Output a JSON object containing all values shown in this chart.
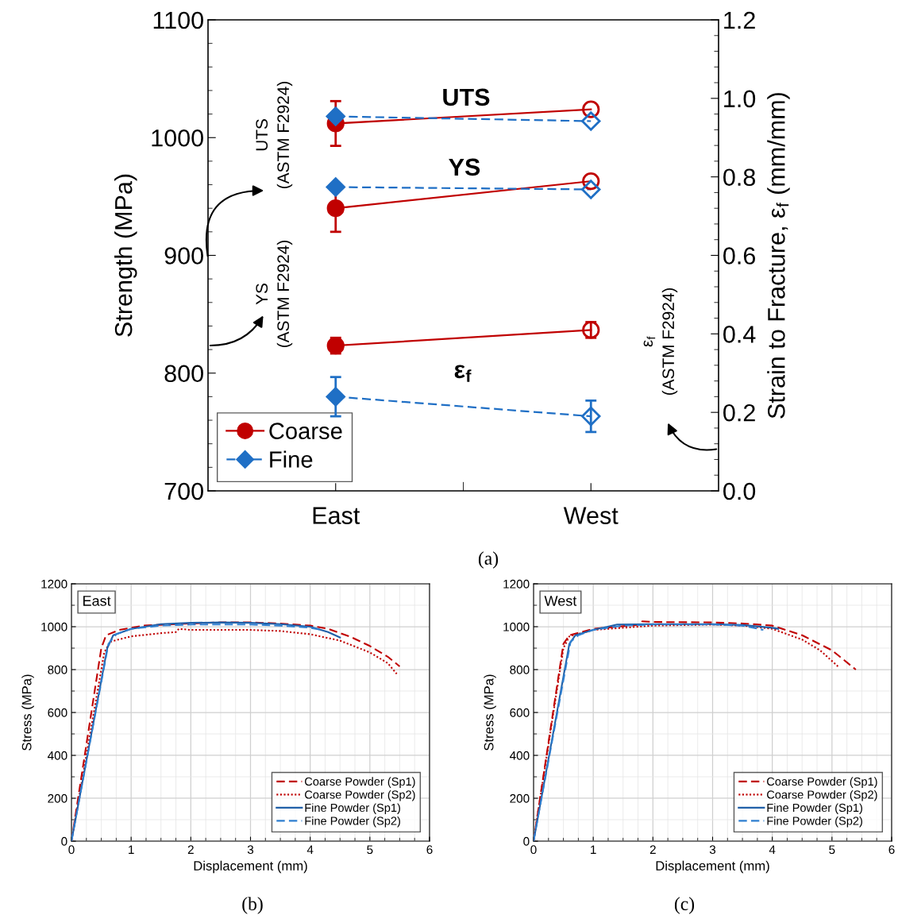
{
  "chart_data": [
    {
      "type": "line",
      "categories": [
        "East",
        "West"
      ],
      "ylabel": "Strength (MPa)",
      "y2label": "Strain to Fracture, ε$_{f}$ (mm/mm)",
      "ylim": [
        700,
        1100
      ],
      "yticks": [
        700,
        800,
        900,
        1000,
        1100
      ],
      "y2lim": [
        0,
        1.2
      ],
      "y2ticks": [
        {
          "value": 0,
          "label": "0.0"
        },
        0.2,
        0.4,
        0.6,
        0.8,
        {
          "value": 1,
          "label": "1.0"
        },
        1.2
      ],
      "legend": "bottom left",
      "grid": false,
      "series": [
        {
          "name": "Coarse",
          "color": "#c00000",
          "marker": "circle",
          "line_style": "solid",
          "values": [
            1012,
            1024
          ],
          "errors": [
            19,
            null
          ]
        },
        {
          "name": "Fine",
          "color": "#1f6fc5",
          "marker": "diamond",
          "line_style": "dashed",
          "values": [
            1018,
            1014
          ],
          "errors": [
            null,
            null
          ]
        },
        {
          "color": "#c00000",
          "marker": "circle",
          "line_style": "solid",
          "values": [
            940,
            963
          ],
          "errors": [
            20,
            null
          ]
        },
        {
          "color": "#1f6fc5",
          "marker": "diamond",
          "line_style": "dashed",
          "values": [
            958,
            956
          ],
          "errors": [
            null,
            null
          ]
        },
        {
          "color": "#c00000",
          "marker": "circle",
          "line_style": "solid",
          "axis": "y2",
          "values": [
            0.37,
            0.41
          ],
          "errors": [
            0.02,
            0.02
          ]
        },
        {
          "color": "#1f6fc5",
          "marker": "diamond",
          "line_style": "dashed",
          "axis": "y2",
          "values": [
            0.24,
            0.19
          ],
          "errors": [
            0.05,
            0.04
          ]
        }
      ],
      "annotations": [
        "UTS",
        "YS",
        "ε$_{f}$",
        "UTS\n(ASTM F2924)",
        "YS\n(ASTM F2924)",
        "ε$_{f}$\n(ASTM F2924)",
        "(a)"
      ]
    },
    {
      "type": "line",
      "title": "East",
      "xlabel": "Displacement (mm)",
      "ylabel": "Stress (MPa)",
      "xlim": [
        0,
        6
      ],
      "xticks": [
        0,
        1,
        2,
        3,
        4,
        5,
        6
      ],
      "ylim": [
        0,
        1200
      ],
      "yticks": [
        0,
        200,
        400,
        600,
        800,
        1000,
        1200
      ],
      "grid": true,
      "legend": "bottom right",
      "series": [
        {
          "name": "Coarse Powder (Sp1)",
          "color": "#c00000",
          "line_style": "dashed",
          "x": [
            0,
            0.5,
            0.58,
            0.8,
            1.2,
            2,
            2.5,
            3,
            3.5,
            4,
            4.3,
            4.7,
            5,
            5.3,
            5.5
          ],
          "values": [
            0,
            900,
            960,
            985,
            1005,
            1015,
            1020,
            1020,
            1015,
            1005,
            990,
            950,
            910,
            860,
            815
          ]
        },
        {
          "name": "Coarse Powder (Sp2)",
          "color": "#c00000",
          "line_style": "dotted",
          "x": [
            0,
            0.55,
            0.65,
            1,
            1.5,
            1.75,
            1.8,
            2,
            3,
            3.5,
            4,
            4.5,
            5,
            5.3,
            5.45
          ],
          "values": [
            0,
            880,
            930,
            955,
            970,
            975,
            990,
            985,
            985,
            980,
            965,
            935,
            880,
            830,
            780
          ]
        },
        {
          "name": "Fine Powder (Sp1)",
          "color": "#2060a8",
          "line_style": "solid",
          "x": [
            0,
            0.6,
            0.7,
            1,
            1.5,
            2,
            2.5,
            3,
            3.5,
            4,
            4.3,
            4.5
          ],
          "values": [
            0,
            900,
            960,
            990,
            1012,
            1018,
            1020,
            1018,
            1012,
            1000,
            975,
            950
          ]
        },
        {
          "name": "Fine Powder (Sp2)",
          "color": "#2f7fd0",
          "line_style": "dashed",
          "x": [
            0,
            0.62,
            0.75,
            1,
            1.5,
            2,
            3,
            3.5,
            4,
            4.2
          ],
          "values": [
            0,
            920,
            965,
            990,
            1005,
            1010,
            1010,
            1005,
            995,
            985
          ]
        }
      ],
      "annotations": [
        "(b)"
      ]
    },
    {
      "type": "line",
      "title": "West",
      "xlabel": "Displacement (mm)",
      "ylabel": "Stress (MPa)",
      "xlim": [
        0,
        6
      ],
      "xticks": [
        0,
        1,
        2,
        3,
        4,
        5,
        6
      ],
      "ylim": [
        0,
        1200
      ],
      "yticks": [
        0,
        200,
        400,
        600,
        800,
        1000,
        1200
      ],
      "grid": true,
      "legend": "bottom right",
      "series": [
        {
          "name": "Coarse Powder (Sp1)",
          "color": "#c00000",
          "line_style": "dashed",
          "x": [
            0,
            0.5,
            0.6,
            1,
            1.8,
            1.82,
            2,
            3,
            3.5,
            4,
            4.5,
            5,
            5.4
          ],
          "values": [
            0,
            920,
            960,
            990,
            1010,
            1025,
            1022,
            1020,
            1015,
            1005,
            960,
            890,
            800
          ]
        },
        {
          "name": "Coarse Powder (Sp2)",
          "color": "#c00000",
          "line_style": "dotted",
          "x": [
            0,
            0.5,
            0.6,
            1,
            2,
            3,
            3.5,
            4,
            4.5,
            4.8,
            5.1
          ],
          "values": [
            0,
            900,
            955,
            985,
            1005,
            1010,
            1005,
            990,
            940,
            890,
            815
          ]
        },
        {
          "name": "Fine Powder (Sp1)",
          "color": "#2060a8",
          "line_style": "solid",
          "x": [
            0,
            0.6,
            0.7,
            1,
            1.4,
            2,
            3,
            3.5,
            4,
            4.1
          ],
          "values": [
            0,
            920,
            960,
            985,
            1010,
            1012,
            1012,
            1008,
            995,
            990
          ]
        },
        {
          "name": "Fine Powder (Sp2)",
          "color": "#2f7fd0",
          "line_style": "dashed",
          "x": [
            0,
            0.62,
            0.75,
            1,
            1.5,
            2,
            3,
            3.5,
            3.85
          ],
          "values": [
            0,
            930,
            960,
            985,
            1005,
            1010,
            1010,
            1005,
            985
          ]
        }
      ],
      "annotations": [
        "(c)"
      ]
    }
  ]
}
